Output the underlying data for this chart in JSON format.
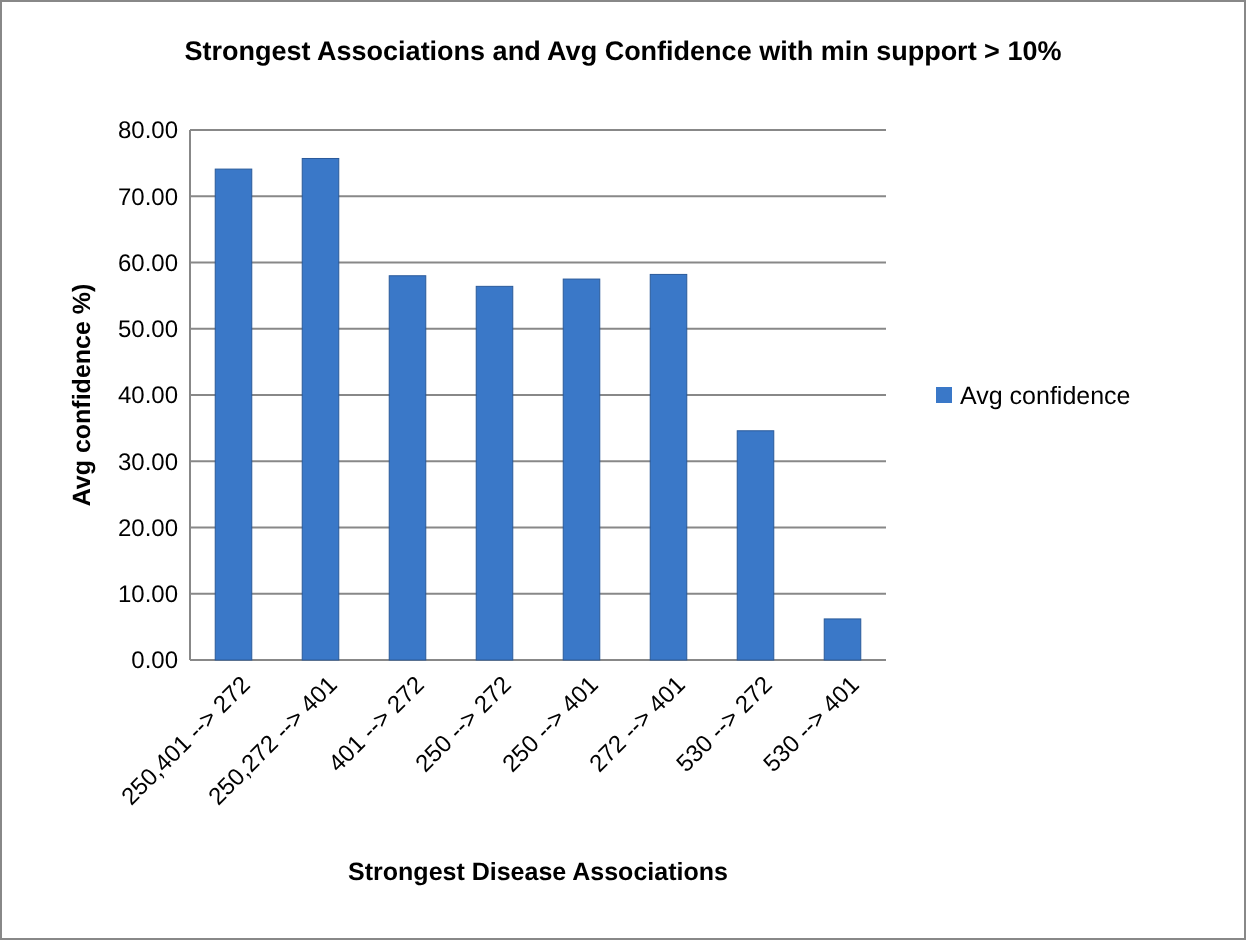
{
  "chart_data": {
    "type": "bar",
    "title": "Strongest Associations and Avg Confidence with min support > 10%",
    "xlabel": "Strongest Disease Associations",
    "ylabel": "Avg confidence %)",
    "categories": [
      "250,401 --> 272",
      "250,272 --> 401",
      "401 --> 272",
      "250 --> 272",
      "250 --> 401",
      "272 --> 401",
      "530 --> 272",
      "530 --> 401"
    ],
    "series": [
      {
        "name": "Avg confidence",
        "color": "#3a78c8",
        "values": [
          74.1,
          75.7,
          58.0,
          56.4,
          57.5,
          58.2,
          34.6,
          6.2
        ]
      }
    ],
    "ylim": [
      0,
      80
    ],
    "yticks": [
      {
        "value": 0,
        "label": "0.00"
      },
      {
        "value": 10,
        "label": "10.00"
      },
      {
        "value": 20,
        "label": "20.00"
      },
      {
        "value": 30,
        "label": "30.00"
      },
      {
        "value": 40,
        "label": "40.00"
      },
      {
        "value": 50,
        "label": "50.00"
      },
      {
        "value": 60,
        "label": "60.00"
      },
      {
        "value": 70,
        "label": "70.00"
      },
      {
        "value": 80,
        "label": "80.00"
      }
    ],
    "grid": "y",
    "legend": "right"
  }
}
